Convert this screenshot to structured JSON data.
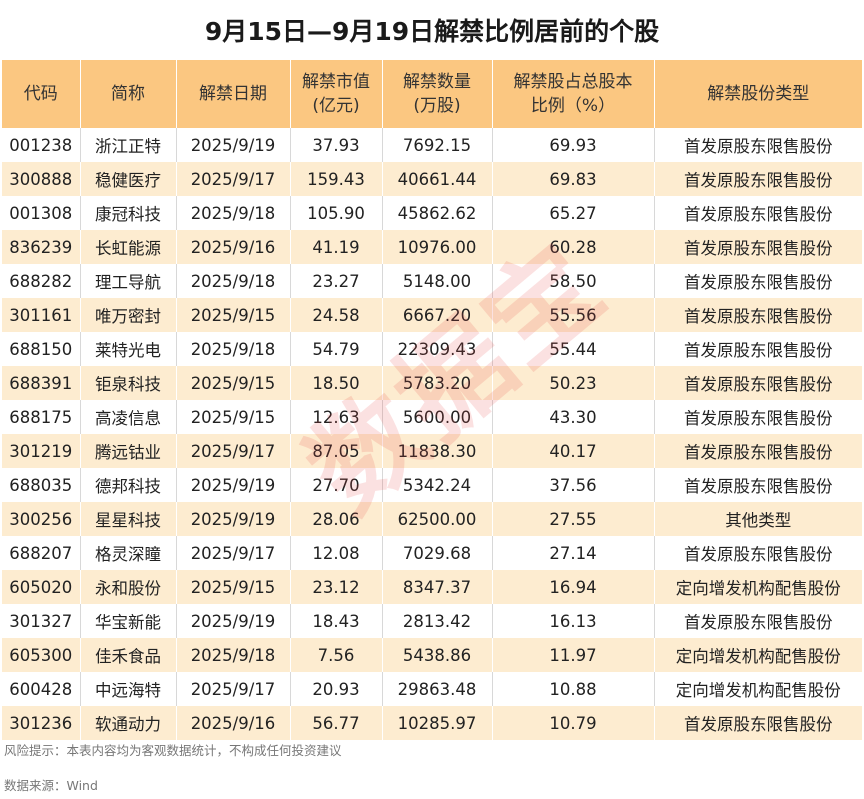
{
  "title": "9月15日—9月19日解禁比例居前的个股",
  "columns": [
    "代码",
    "简称",
    "解禁日期",
    "解禁市值\n(亿元)",
    "解禁数量\n(万股)",
    "解禁股占总股本\n比例（%）",
    "解禁股份类型"
  ],
  "rows": [
    [
      "001238",
      "浙江正特",
      "2025/9/19",
      "37.93",
      "7692.15",
      "69.93",
      "首发原股东限售股份"
    ],
    [
      "300888",
      "稳健医疗",
      "2025/9/17",
      "159.43",
      "40661.44",
      "69.83",
      "首发原股东限售股份"
    ],
    [
      "001308",
      "康冠科技",
      "2025/9/18",
      "105.90",
      "45862.62",
      "65.27",
      "首发原股东限售股份"
    ],
    [
      "836239",
      "长虹能源",
      "2025/9/16",
      "41.19",
      "10976.00",
      "60.28",
      "首发原股东限售股份"
    ],
    [
      "688282",
      "理工导航",
      "2025/9/18",
      "23.27",
      "5148.00",
      "58.50",
      "首发原股东限售股份"
    ],
    [
      "301161",
      "唯万密封",
      "2025/9/15",
      "24.58",
      "6667.20",
      "55.56",
      "首发原股东限售股份"
    ],
    [
      "688150",
      "莱特光电",
      "2025/9/18",
      "54.79",
      "22309.43",
      "55.44",
      "首发原股东限售股份"
    ],
    [
      "688391",
      "钜泉科技",
      "2025/9/15",
      "18.50",
      "5783.20",
      "50.23",
      "首发原股东限售股份"
    ],
    [
      "688175",
      "高凌信息",
      "2025/9/15",
      "12.63",
      "5600.00",
      "43.30",
      "首发原股东限售股份"
    ],
    [
      "301219",
      "腾远钴业",
      "2025/9/17",
      "87.05",
      "11838.30",
      "40.17",
      "首发原股东限售股份"
    ],
    [
      "688035",
      "德邦科技",
      "2025/9/19",
      "27.70",
      "5342.24",
      "37.56",
      "首发原股东限售股份"
    ],
    [
      "300256",
      "星星科技",
      "2025/9/19",
      "28.06",
      "62500.00",
      "27.55",
      "其他类型"
    ],
    [
      "688207",
      "格灵深瞳",
      "2025/9/17",
      "12.08",
      "7029.68",
      "27.14",
      "首发原股东限售股份"
    ],
    [
      "605020",
      "永和股份",
      "2025/9/15",
      "23.12",
      "8347.37",
      "16.94",
      "定向增发机构配售股份"
    ],
    [
      "301327",
      "华宝新能",
      "2025/9/19",
      "18.43",
      "2813.42",
      "16.13",
      "首发原股东限售股份"
    ],
    [
      "605300",
      "佳禾食品",
      "2025/9/18",
      "7.56",
      "5438.86",
      "11.97",
      "定向增发机构配售股份"
    ],
    [
      "600428",
      "中远海特",
      "2025/9/17",
      "20.93",
      "29863.48",
      "10.88",
      "定向增发机构配售股份"
    ],
    [
      "301236",
      "软通动力",
      "2025/9/16",
      "56.77",
      "10285.97",
      "10.79",
      "首发原股东限售股份"
    ]
  ],
  "risk_note": "风险提示：本表内容均为客观数据统计，不构成任何投资建议",
  "source_note": "数据来源：Wind",
  "watermark": "数据宝",
  "colors": {
    "header_bg": "#fbc781",
    "stripe_bg": "#fdecd0",
    "watermark": "#e84646"
  }
}
